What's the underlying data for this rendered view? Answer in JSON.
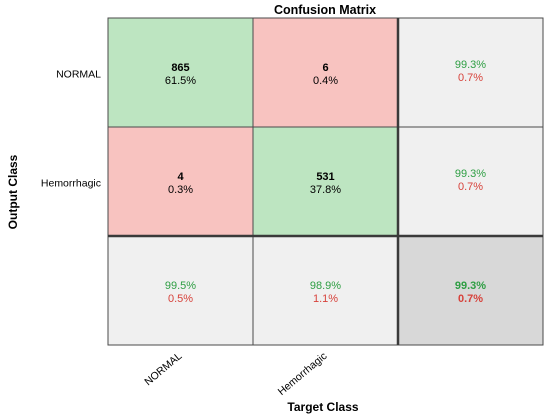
{
  "chart_data": {
    "type": "heatmap",
    "title": "Confusion Matrix",
    "xlabel": "Target Class",
    "ylabel": "Output Class",
    "classes": [
      "NORMAL",
      "Hemorrhagic"
    ],
    "matrix": [
      [
        865,
        6
      ],
      [
        4,
        531
      ]
    ],
    "cell_percent": [
      [
        "61.5%",
        "0.4%"
      ],
      [
        "0.3%",
        "37.8%"
      ]
    ],
    "row_summary": [
      {
        "correct": "99.3%",
        "wrong": "0.7%"
      },
      {
        "correct": "99.3%",
        "wrong": "0.7%"
      }
    ],
    "col_summary": [
      {
        "correct": "99.5%",
        "wrong": "0.5%"
      },
      {
        "correct": "98.9%",
        "wrong": "1.1%"
      }
    ],
    "overall": {
      "correct": "99.3%",
      "wrong": "0.7%"
    },
    "colors": {
      "correct_cell": "#bde5c1",
      "wrong_cell": "#f8c3c0",
      "summary_cell": "#f0f0f0",
      "overall_cell": "#d8d8d8",
      "good_text": "#2e9e43",
      "bad_text": "#d7423b"
    }
  }
}
